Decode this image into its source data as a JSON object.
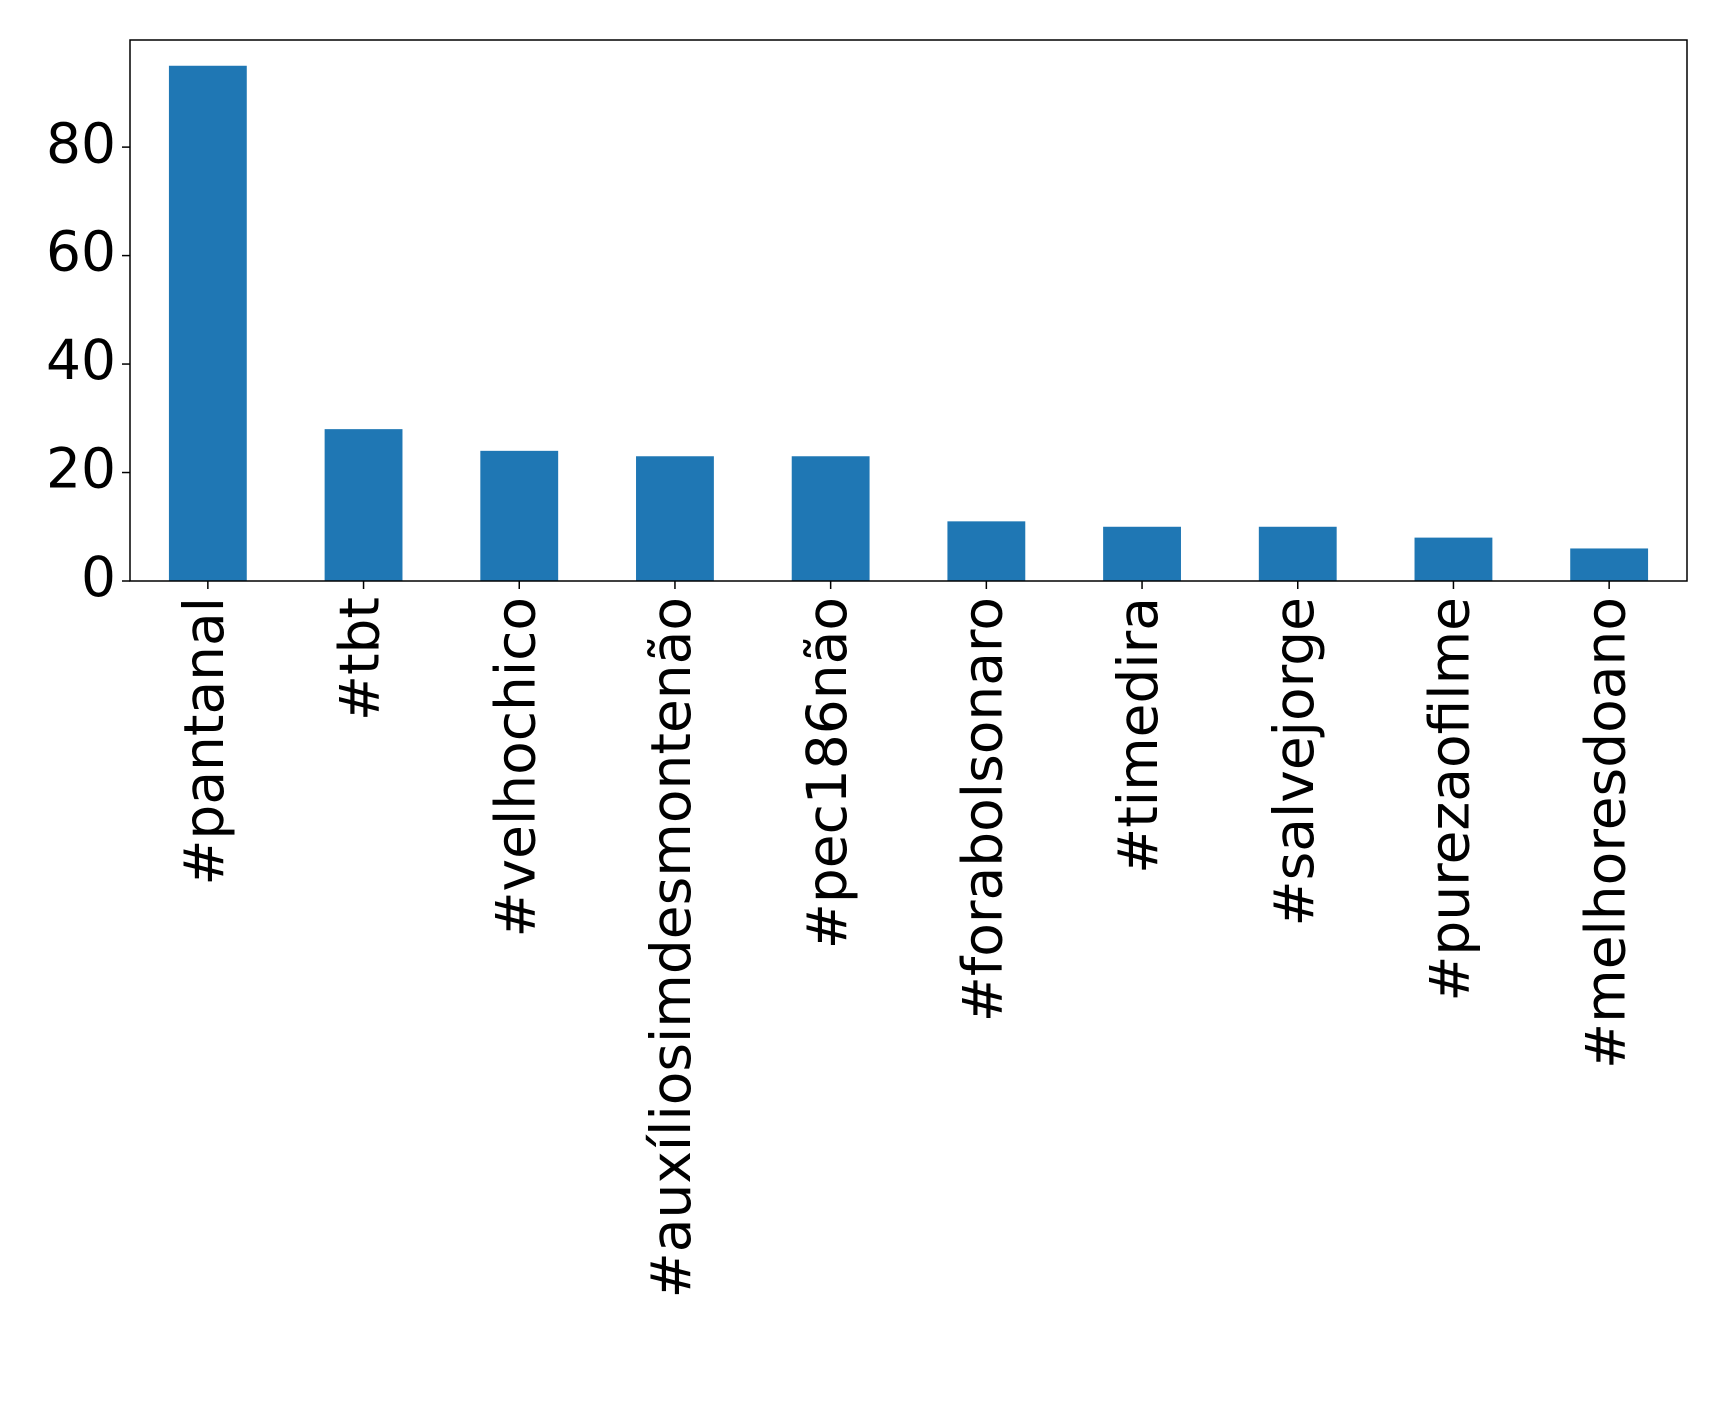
{
  "chart_data": {
    "type": "bar",
    "categories": [
      "#pantanal",
      "#tbt",
      "#velhochico",
      "#auxíliosimdesmontenão",
      "#pec186não",
      "#forabolsonaro",
      "#timedira",
      "#salvejorge",
      "#purezaofilme",
      "#melhoresdoano"
    ],
    "values": [
      95,
      28,
      24,
      23,
      23,
      11,
      10,
      10,
      8,
      6
    ],
    "color": "#1f77b4",
    "ylim": [
      0,
      99.75
    ],
    "yticks": [
      0,
      20,
      40,
      60,
      80
    ],
    "grid": false
  }
}
